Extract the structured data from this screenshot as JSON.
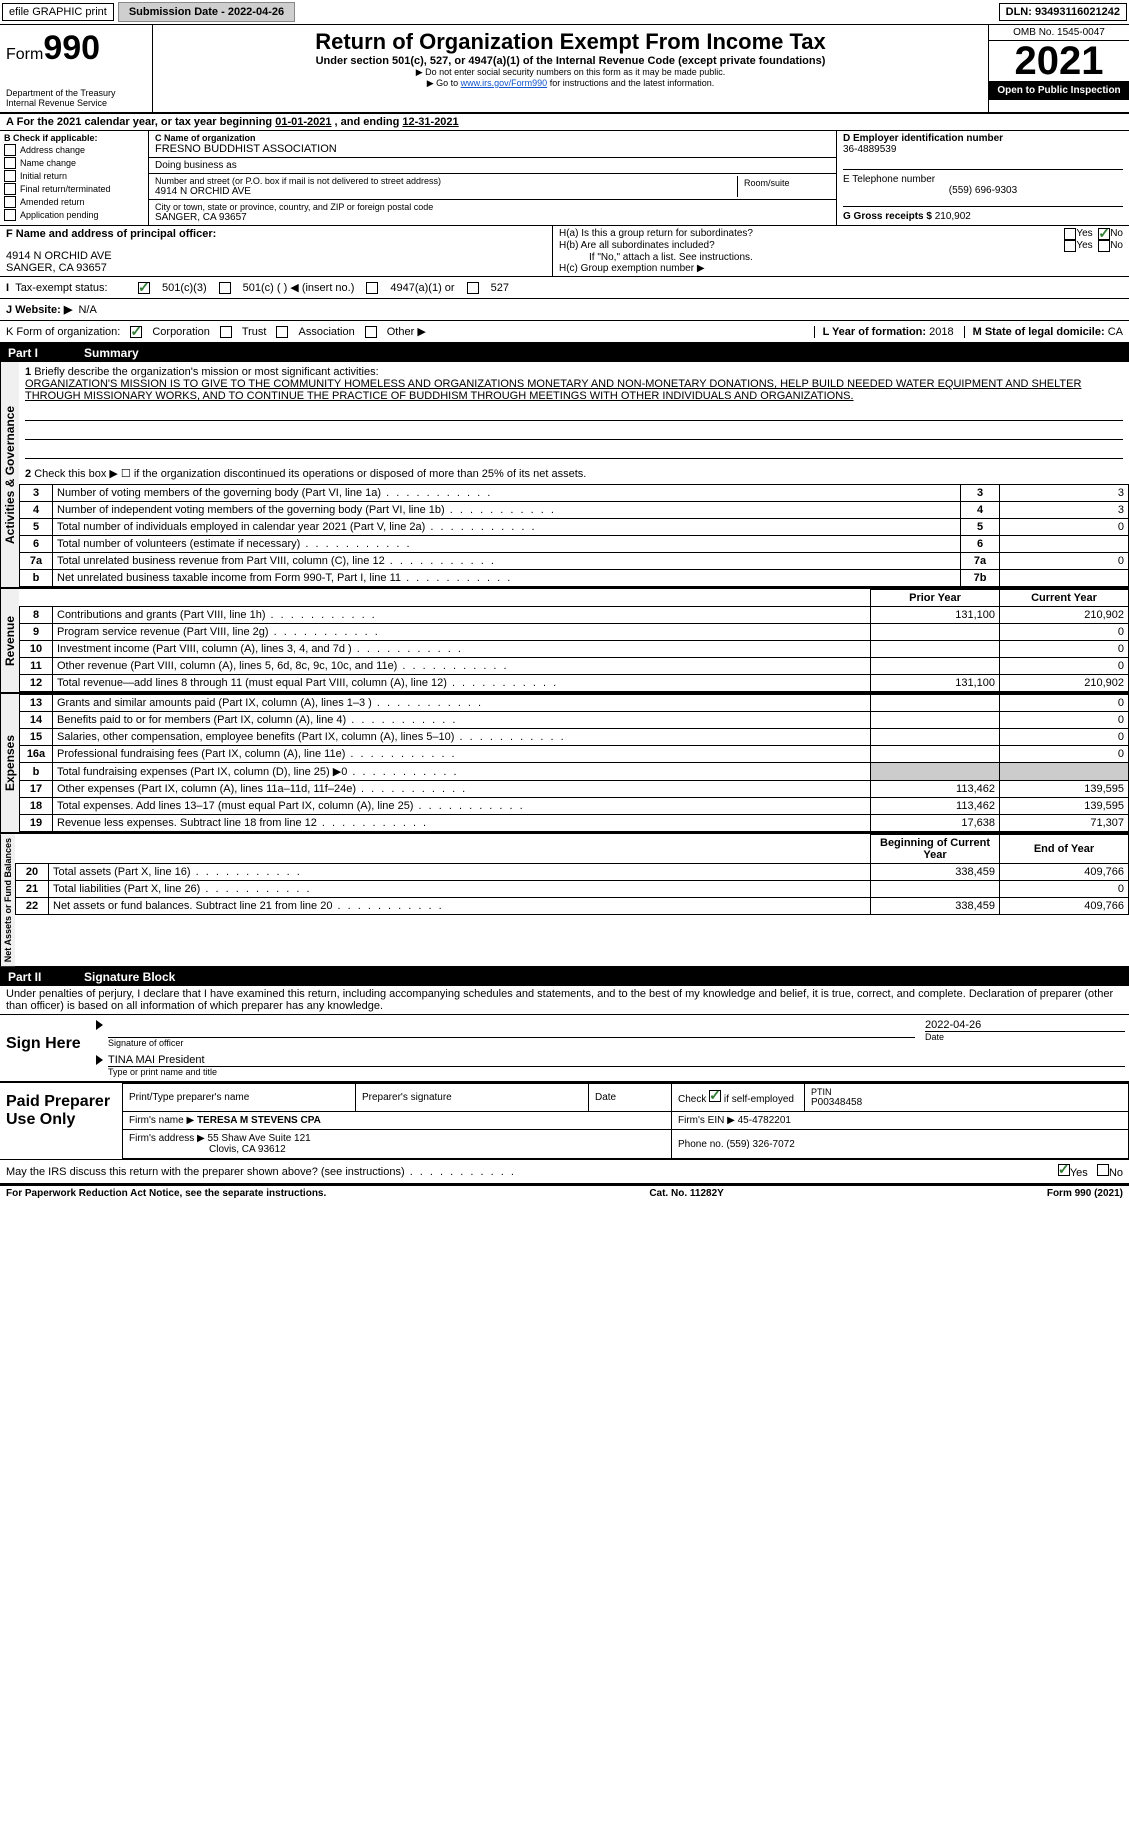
{
  "topbar": {
    "efile": "efile GRAPHIC print",
    "submission_label": "Submission Date - 2022-04-26",
    "dln_label": "DLN: 93493116021242"
  },
  "header": {
    "form_prefix": "Form",
    "form_number": "990",
    "title": "Return of Organization Exempt From Income Tax",
    "subtitle": "Under section 501(c), 527, or 4947(a)(1) of the Internal Revenue Code (except private foundations)",
    "note1": "▶ Do not enter social security numbers on this form as it may be made public.",
    "note2_pre": "▶ Go to ",
    "note2_link": "www.irs.gov/Form990",
    "note2_post": " for instructions and the latest information.",
    "dept": "Department of the Treasury",
    "irs": "Internal Revenue Service",
    "omb": "OMB No. 1545-0047",
    "year": "2021",
    "open": "Open to Public Inspection"
  },
  "periodA": {
    "text_pre": "For the 2021 calendar year, or tax year beginning ",
    "begin": "01-01-2021",
    "mid": " , and ending ",
    "end": "12-31-2021"
  },
  "boxB": {
    "label": "B Check if applicable:",
    "items": [
      "Address change",
      "Name change",
      "Initial return",
      "Final return/terminated",
      "Amended return",
      "Application pending"
    ]
  },
  "boxC": {
    "name_label": "C Name of organization",
    "name": "FRESNO BUDDHIST ASSOCIATION",
    "dba_label": "Doing business as",
    "street_label": "Number and street (or P.O. box if mail is not delivered to street address)",
    "room_label": "Room/suite",
    "street": "4914 N ORCHID AVE",
    "city_label": "City or town, state or province, country, and ZIP or foreign postal code",
    "city": "SANGER, CA  93657"
  },
  "boxD": {
    "label": "D Employer identification number",
    "value": "36-4889539"
  },
  "boxE": {
    "label": "E Telephone number",
    "value": "(559) 696-9303"
  },
  "boxG": {
    "label": "G Gross receipts $",
    "value": "210,902"
  },
  "boxF": {
    "label": "F Name and address of principal officer:",
    "line1": "4914 N ORCHID AVE",
    "line2": "SANGER, CA  93657"
  },
  "boxH": {
    "a": "H(a)  Is this a group return for subordinates?",
    "b": "H(b)  Are all subordinates included?",
    "bnote": "If \"No,\" attach a list. See instructions.",
    "c": "H(c)  Group exemption number ▶"
  },
  "yes": "Yes",
  "no": "No",
  "taxExempt": {
    "label": "Tax-exempt status:",
    "o1": "501(c)(3)",
    "o2": "501(c) (  ) ◀ (insert no.)",
    "o3": "4947(a)(1) or",
    "o4": "527"
  },
  "boxJ": {
    "label": "J   Website: ▶",
    "value": "N/A"
  },
  "boxK": {
    "label": "K Form of organization:",
    "o1": "Corporation",
    "o2": "Trust",
    "o3": "Association",
    "o4": "Other ▶"
  },
  "boxL": {
    "label": "L Year of formation:",
    "value": "2018"
  },
  "boxM": {
    "label": "M State of legal domicile:",
    "value": "CA"
  },
  "part1": {
    "num": "Part I",
    "title": "Summary",
    "l1_label": "Briefly describe the organization's mission or most significant activities:",
    "l1_text": "ORGANIZATION'S MISSION IS TO GIVE TO THE COMMUNITY HOMELESS AND ORGANIZATIONS MONETARY AND NON-MONETARY DONATIONS, HELP BUILD NEEDED WATER EQUIPMENT AND SHELTER THROUGH MISSIONARY WORKS, AND TO CONTINUE THE PRACTICE OF BUDDHISM THROUGH MEETINGS WITH OTHER INDIVIDUALS AND ORGANIZATIONS.",
    "l2": "Check this box ▶ ☐ if the organization discontinued its operations or disposed of more than 25% of its net assets.",
    "rows_gov": [
      {
        "n": "3",
        "t": "Number of voting members of the governing body (Part VI, line 1a)",
        "idx": "3",
        "v": "3"
      },
      {
        "n": "4",
        "t": "Number of independent voting members of the governing body (Part VI, line 1b)",
        "idx": "4",
        "v": "3"
      },
      {
        "n": "5",
        "t": "Total number of individuals employed in calendar year 2021 (Part V, line 2a)",
        "idx": "5",
        "v": "0"
      },
      {
        "n": "6",
        "t": "Total number of volunteers (estimate if necessary)",
        "idx": "6",
        "v": ""
      },
      {
        "n": "7a",
        "t": "Total unrelated business revenue from Part VIII, column (C), line 12",
        "idx": "7a",
        "v": "0"
      },
      {
        "n": "b",
        "t": "Net unrelated business taxable income from Form 990-T, Part I, line 11",
        "idx": "7b",
        "v": ""
      }
    ],
    "prior_hdr": "Prior Year",
    "current_hdr": "Current Year",
    "rows_rev": [
      {
        "n": "8",
        "t": "Contributions and grants (Part VIII, line 1h)",
        "p": "131,100",
        "c": "210,902"
      },
      {
        "n": "9",
        "t": "Program service revenue (Part VIII, line 2g)",
        "p": "",
        "c": "0"
      },
      {
        "n": "10",
        "t": "Investment income (Part VIII, column (A), lines 3, 4, and 7d )",
        "p": "",
        "c": "0"
      },
      {
        "n": "11",
        "t": "Other revenue (Part VIII, column (A), lines 5, 6d, 8c, 9c, 10c, and 11e)",
        "p": "",
        "c": "0"
      },
      {
        "n": "12",
        "t": "Total revenue—add lines 8 through 11 (must equal Part VIII, column (A), line 12)",
        "p": "131,100",
        "c": "210,902"
      }
    ],
    "rows_exp": [
      {
        "n": "13",
        "t": "Grants and similar amounts paid (Part IX, column (A), lines 1–3 )",
        "p": "",
        "c": "0"
      },
      {
        "n": "14",
        "t": "Benefits paid to or for members (Part IX, column (A), line 4)",
        "p": "",
        "c": "0"
      },
      {
        "n": "15",
        "t": "Salaries, other compensation, employee benefits (Part IX, column (A), lines 5–10)",
        "p": "",
        "c": "0"
      },
      {
        "n": "16a",
        "t": "Professional fundraising fees (Part IX, column (A), line 11e)",
        "p": "",
        "c": "0"
      },
      {
        "n": "b",
        "t": "Total fundraising expenses (Part IX, column (D), line 25) ▶0",
        "p": "—",
        "c": "—"
      },
      {
        "n": "17",
        "t": "Other expenses (Part IX, column (A), lines 11a–11d, 11f–24e)",
        "p": "113,462",
        "c": "139,595"
      },
      {
        "n": "18",
        "t": "Total expenses. Add lines 13–17 (must equal Part IX, column (A), line 25)",
        "p": "113,462",
        "c": "139,595"
      },
      {
        "n": "19",
        "t": "Revenue less expenses. Subtract line 18 from line 12",
        "p": "17,638",
        "c": "71,307"
      }
    ],
    "begin_hdr": "Beginning of Current Year",
    "end_hdr": "End of Year",
    "rows_net": [
      {
        "n": "20",
        "t": "Total assets (Part X, line 16)",
        "p": "338,459",
        "c": "409,766"
      },
      {
        "n": "21",
        "t": "Total liabilities (Part X, line 26)",
        "p": "",
        "c": "0"
      },
      {
        "n": "22",
        "t": "Net assets or fund balances. Subtract line 21 from line 20",
        "p": "338,459",
        "c": "409,766"
      }
    ],
    "sidelabels": {
      "gov": "Activities & Governance",
      "rev": "Revenue",
      "exp": "Expenses",
      "net": "Net Assets or Fund Balances"
    }
  },
  "part2": {
    "num": "Part II",
    "title": "Signature Block",
    "penalty": "Under penalties of perjury, I declare that I have examined this return, including accompanying schedules and statements, and to the best of my knowledge and belief, it is true, correct, and complete. Declaration of preparer (other than officer) is based on all information of which preparer has any knowledge."
  },
  "sign": {
    "signhere": "Sign Here",
    "sig_officer": "Signature of officer",
    "date": "Date",
    "date_val": "2022-04-26",
    "name": "TINA MAI  President",
    "name_label": "Type or print name and title"
  },
  "paid": {
    "label": "Paid Preparer Use Only",
    "h1": "Print/Type preparer's name",
    "h2": "Preparer's signature",
    "h3": "Date",
    "h4_pre": "Check",
    "h4_post": "if self-employed",
    "h5": "PTIN",
    "ptin": "P00348458",
    "firm_name_label": "Firm's name     ▶",
    "firm_name": "TERESA M STEVENS CPA",
    "firm_ein_label": "Firm's EIN ▶",
    "firm_ein": "45-4782201",
    "firm_addr_label": "Firm's address ▶",
    "firm_addr1": "55 Shaw Ave Suite 121",
    "firm_addr2": "Clovis, CA  93612",
    "phone_label": "Phone no.",
    "phone": "(559) 326-7072"
  },
  "discuss": "May the IRS discuss this return with the preparer shown above? (see instructions)",
  "footer": {
    "left": "For Paperwork Reduction Act Notice, see the separate instructions.",
    "mid": "Cat. No. 11282Y",
    "right": "Form 990 (2021)"
  },
  "colors": {
    "link": "#1155cc",
    "check": "#2e7d32"
  }
}
